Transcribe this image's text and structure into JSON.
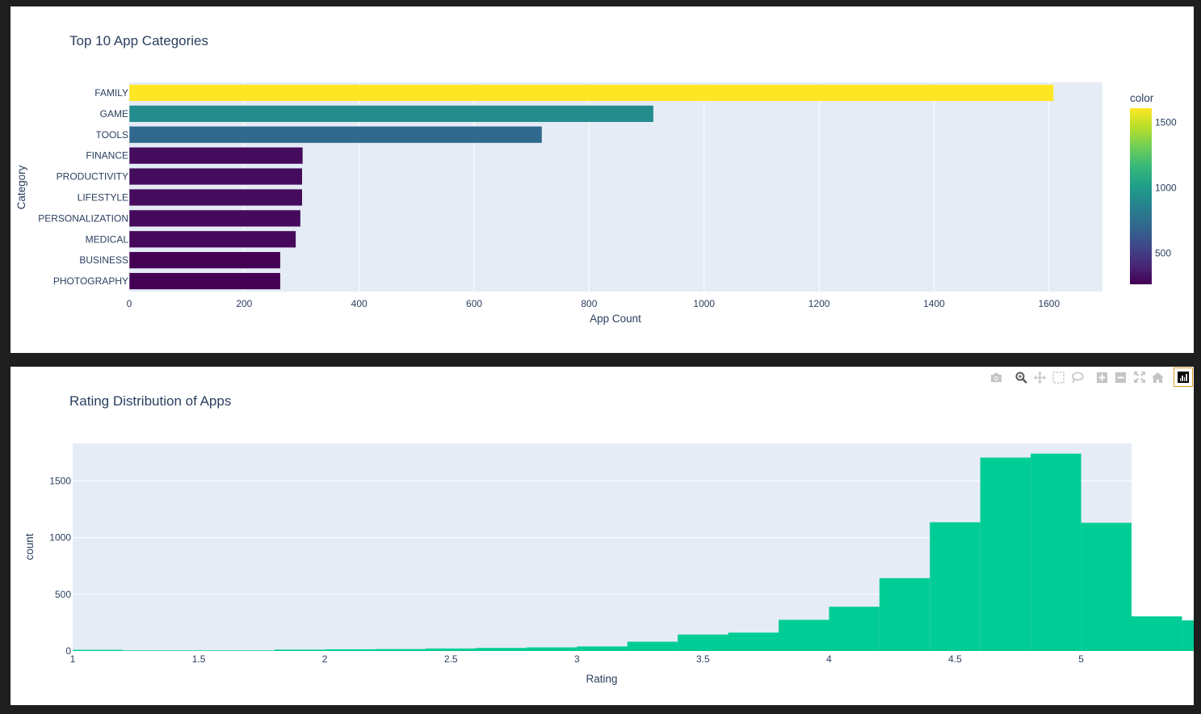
{
  "chart_data": [
    {
      "type": "bar",
      "orientation": "horizontal",
      "title": "Top 10 App Categories",
      "xlabel": "App Count",
      "ylabel": "Category",
      "categories": [
        "FAMILY",
        "GAME",
        "TOOLS",
        "FINANCE",
        "PRODUCTIVITY",
        "LIFESTYLE",
        "PERSONALIZATION",
        "MEDICAL",
        "BUSINESS",
        "PHOTOGRAPHY"
      ],
      "values": [
        1608,
        912,
        718,
        302,
        301,
        301,
        298,
        290,
        263,
        263
      ],
      "xlim": [
        0,
        1693
      ],
      "xticks": [
        0,
        200,
        400,
        600,
        800,
        1000,
        1200,
        1400,
        1600
      ],
      "grid": true,
      "colorscale": "viridis",
      "colorbar": {
        "title": "color",
        "ticks": [
          500,
          1000,
          1500
        ],
        "range": [
          263,
          1608
        ]
      }
    },
    {
      "type": "bar",
      "subtype": "histogram",
      "title": "Rating Distribution of Apps",
      "xlabel": "Rating",
      "ylabel": "count",
      "bin_start": 1.0,
      "bin_width": 0.2,
      "values": [
        10,
        5,
        5,
        5,
        12,
        15,
        17,
        22,
        27,
        32,
        40,
        82,
        145,
        162,
        275,
        390,
        642,
        1135,
        1705,
        1740,
        1130,
        305,
        270
      ],
      "xlim": [
        1,
        5.2
      ],
      "ylim": [
        0,
        1830
      ],
      "xticks": [
        1,
        1.5,
        2,
        2.5,
        3,
        3.5,
        4,
        4.5,
        5
      ],
      "xticklabels": [
        "1",
        "1.5",
        "2",
        "2.5",
        "3",
        "3.5",
        "4",
        "4.5",
        "5"
      ],
      "yticks": [
        0,
        500,
        1000,
        1500
      ],
      "color": "#00cc96",
      "grid": true
    }
  ],
  "modebar": {
    "icons": [
      "camera-icon",
      "zoom-icon",
      "pan-icon",
      "box-select-icon",
      "lasso-icon",
      "zoom-in-icon",
      "zoom-out-icon",
      "autoscale-icon",
      "reset-axes-icon",
      "plotly-logo-icon"
    ]
  },
  "colors": {
    "plot_bg": "#e5ecf6",
    "paper_bg": "#ffffff",
    "text": "#2a3f5f",
    "grid": "#ffffff"
  }
}
